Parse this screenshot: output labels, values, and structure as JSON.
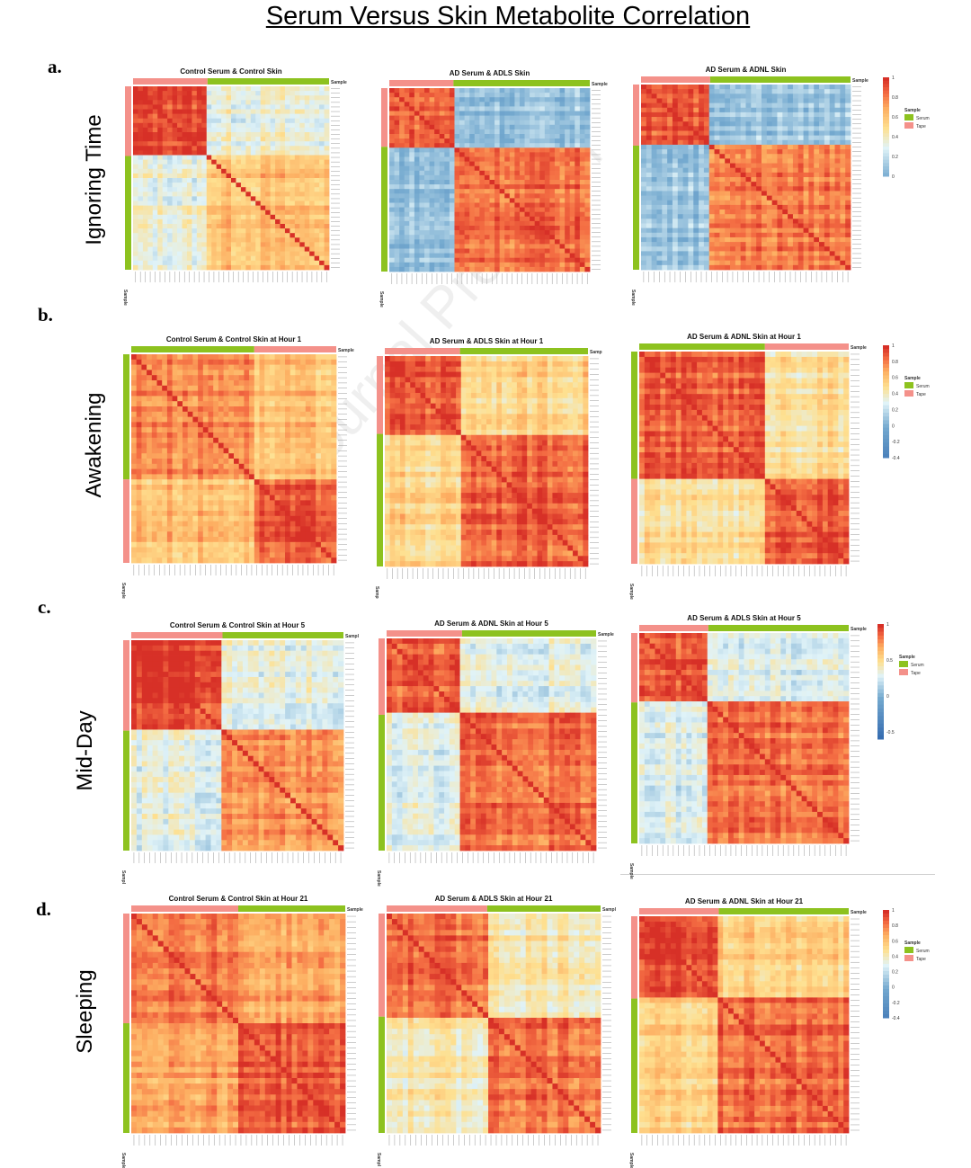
{
  "page_title": "Serum Versus Skin Metabolite Correlation",
  "watermark": "Journal Pre-proof",
  "rows": [
    {
      "label": "a.",
      "name": "Ignoring Time"
    },
    {
      "label": "b.",
      "name": "Awakening"
    },
    {
      "label": "c.",
      "name": "Mid-Day"
    },
    {
      "label": "d.",
      "name": "Sleeping"
    }
  ],
  "colors": {
    "serum": "#8dc21f",
    "tape": "#f4918a",
    "high": "#d73027",
    "low": "#3a78c0"
  },
  "legend_common": {
    "title": "Sample",
    "serum": "Serum",
    "tape": "Tape"
  },
  "legends": [
    {
      "row": 0,
      "ticks": [
        "1",
        "0.8",
        "0.6",
        "0.4",
        "0.2",
        "0"
      ],
      "range": [
        0,
        1
      ]
    },
    {
      "row": 1,
      "ticks": [
        "1",
        "0.8",
        "0.6",
        "0.4",
        "0.2",
        "0",
        "-0.2",
        "-0.4"
      ],
      "range": [
        -0.4,
        1
      ]
    },
    {
      "row": 2,
      "ticks": [
        "1",
        "0.5",
        "0",
        "-0.5"
      ],
      "range": [
        -0.6,
        1
      ]
    },
    {
      "row": 3,
      "ticks": [
        "1",
        "0.8",
        "0.6",
        "0.4",
        "0.2",
        "0",
        "-0.2",
        "-0.4"
      ],
      "range": [
        -0.4,
        1
      ]
    }
  ],
  "chart_data": [
    {
      "type": "heatmap",
      "title": "Control Serum & Control Skin",
      "axis_label": "Sample",
      "groups": [
        {
          "sample": "Tape",
          "fraction": 0.38
        },
        {
          "sample": "Serum",
          "fraction": 0.62
        }
      ],
      "within": [
        0.95,
        0.62
      ],
      "between": 0.35
    },
    {
      "type": "heatmap",
      "title": "AD Serum & ADLS Skin",
      "axis_label": "Sample",
      "groups": [
        {
          "sample": "Tape",
          "fraction": 0.32
        },
        {
          "sample": "Serum",
          "fraction": 0.68
        }
      ],
      "within": [
        0.88,
        0.85
      ],
      "between": 0.1
    },
    {
      "type": "heatmap",
      "title": "AD Serum & ADNL Skin",
      "axis_label": "Sample",
      "groups": [
        {
          "sample": "Tape",
          "fraction": 0.33
        },
        {
          "sample": "Serum",
          "fraction": 0.67
        }
      ],
      "within": [
        0.92,
        0.82
      ],
      "between": 0.12
    },
    {
      "type": "heatmap",
      "title": "Control Serum & Control Skin at Hour 1",
      "axis_label": "Sample",
      "groups": [
        {
          "sample": "Serum",
          "fraction": 0.6
        },
        {
          "sample": "Tape",
          "fraction": 0.4
        }
      ],
      "within": [
        0.8,
        0.88
      ],
      "between": 0.62
    },
    {
      "type": "heatmap",
      "title": "AD Serum & ADLS Skin at Hour 1",
      "axis_label": "Samp",
      "groups": [
        {
          "sample": "Tape",
          "fraction": 0.37
        },
        {
          "sample": "Serum",
          "fraction": 0.63
        }
      ],
      "within": [
        0.9,
        0.9
      ],
      "between": 0.55
    },
    {
      "type": "heatmap",
      "title": "AD Serum & ADNL Skin at Hour 1",
      "axis_label": "Sample",
      "groups": [
        {
          "sample": "Serum",
          "fraction": 0.6
        },
        {
          "sample": "Tape",
          "fraction": 0.4
        }
      ],
      "within": [
        0.88,
        0.92
      ],
      "between": 0.5
    },
    {
      "type": "heatmap",
      "title": "Control Serum & Control Skin at Hour 5",
      "axis_label": "Sampl",
      "groups": [
        {
          "sample": "Tape",
          "fraction": 0.43
        },
        {
          "sample": "Serum",
          "fraction": 0.57
        }
      ],
      "within": [
        0.97,
        0.75
      ],
      "between": 0.32
    },
    {
      "type": "heatmap",
      "title": "AD Serum & ADNL Skin at Hour 5",
      "axis_label": "Sample",
      "groups": [
        {
          "sample": "Tape",
          "fraction": 0.36
        },
        {
          "sample": "Serum",
          "fraction": 0.64
        }
      ],
      "within": [
        0.9,
        0.85
      ],
      "between": 0.32
    },
    {
      "type": "heatmap",
      "title": "AD Serum & ADLS Skin at Hour 5",
      "axis_label": "Sample",
      "groups": [
        {
          "sample": "Tape",
          "fraction": 0.33
        },
        {
          "sample": "Serum",
          "fraction": 0.67
        }
      ],
      "within": [
        0.9,
        0.85
      ],
      "between": 0.3
    },
    {
      "type": "heatmap",
      "title": "Control Serum & Control Skin at Hour 21",
      "axis_label": "Sample",
      "groups": [
        {
          "sample": "Tape",
          "fraction": 0.5
        },
        {
          "sample": "Serum",
          "fraction": 0.5
        }
      ],
      "within": [
        0.85,
        0.9
      ],
      "between": 0.72
    },
    {
      "type": "heatmap",
      "title": "AD Serum & ADLS Skin at Hour 21",
      "axis_label": "Sampl",
      "groups": [
        {
          "sample": "Tape",
          "fraction": 0.47
        },
        {
          "sample": "Serum",
          "fraction": 0.53
        }
      ],
      "within": [
        0.85,
        0.85
      ],
      "between": 0.45
    },
    {
      "type": "heatmap",
      "title": "AD Serum & ADNL Skin at Hour 21",
      "axis_label": "Sample",
      "groups": [
        {
          "sample": "Tape",
          "fraction": 0.38
        },
        {
          "sample": "Serum",
          "fraction": 0.62
        }
      ],
      "within": [
        0.92,
        0.85
      ],
      "between": 0.55
    }
  ]
}
